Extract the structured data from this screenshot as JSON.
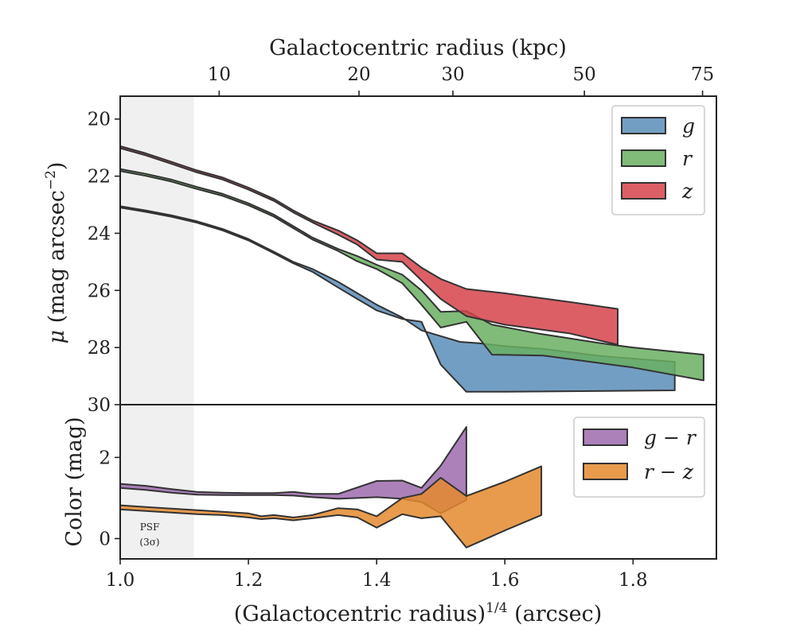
{
  "colors": {
    "g": "#5b8db8",
    "r": "#6aaf61",
    "z": "#d6434b",
    "gr": "#9d6bae",
    "rz": "#e48a2e",
    "psf_band": "#f0f0f0",
    "edge": "#333333"
  },
  "top_axis": {
    "label": "Galactocentric radius (kpc)",
    "ticks": [
      {
        "label": "10",
        "x": 1.1544
      },
      {
        "label": "20",
        "x": 1.3725
      },
      {
        "label": "30",
        "x": 1.519
      },
      {
        "label": "50",
        "x": 1.7241
      },
      {
        "label": "75",
        "x": 1.9084
      }
    ]
  },
  "annotations": {
    "psf_line1": "PSF",
    "psf_line2": "(3σ)"
  },
  "chart_data": [
    {
      "type": "area",
      "panel": "surface-brightness",
      "ylabel": "μ (mag arcsec⁻²)",
      "xlim": [
        1.0,
        1.93
      ],
      "ylim": [
        30,
        19.2
      ],
      "yticks": [
        "20",
        "22",
        "24",
        "26",
        "28",
        "30"
      ],
      "psf_region": [
        1.0,
        1.115
      ],
      "legend": {
        "placement": "top-right",
        "entries": [
          "g",
          "r",
          "z"
        ]
      },
      "series": [
        {
          "name": "g",
          "upper": [
            [
              1.0,
              23.05
            ],
            [
              1.04,
              23.2
            ],
            [
              1.08,
              23.37
            ],
            [
              1.12,
              23.58
            ],
            [
              1.16,
              23.85
            ],
            [
              1.2,
              24.2
            ],
            [
              1.24,
              24.65
            ],
            [
              1.27,
              25.0
            ],
            [
              1.3,
              25.25
            ],
            [
              1.34,
              25.7
            ],
            [
              1.37,
              26.1
            ],
            [
              1.4,
              26.5
            ],
            [
              1.44,
              26.95
            ],
            [
              1.47,
              27.4
            ],
            [
              1.5,
              27.6
            ],
            [
              1.53,
              27.8
            ],
            [
              1.56,
              27.85
            ],
            [
              1.6,
              27.95
            ],
            [
              1.66,
              28.05
            ],
            [
              1.75,
              28.3
            ],
            [
              1.865,
              28.5
            ]
          ],
          "lower": [
            [
              1.0,
              23.1
            ],
            [
              1.04,
              23.25
            ],
            [
              1.08,
              23.42
            ],
            [
              1.12,
              23.63
            ],
            [
              1.16,
              23.9
            ],
            [
              1.2,
              24.25
            ],
            [
              1.24,
              24.7
            ],
            [
              1.27,
              25.05
            ],
            [
              1.3,
              25.35
            ],
            [
              1.34,
              25.9
            ],
            [
              1.37,
              26.3
            ],
            [
              1.4,
              26.7
            ],
            [
              1.44,
              27.0
            ],
            [
              1.47,
              27.1
            ],
            [
              1.5,
              28.6
            ],
            [
              1.54,
              29.55
            ],
            [
              1.6,
              29.55
            ],
            [
              1.7,
              29.53
            ],
            [
              1.865,
              29.5
            ]
          ]
        },
        {
          "name": "r",
          "upper": [
            [
              1.0,
              21.75
            ],
            [
              1.04,
              21.92
            ],
            [
              1.08,
              22.12
            ],
            [
              1.12,
              22.38
            ],
            [
              1.16,
              22.62
            ],
            [
              1.2,
              22.95
            ],
            [
              1.24,
              23.35
            ],
            [
              1.27,
              23.75
            ],
            [
              1.3,
              24.15
            ],
            [
              1.34,
              24.55
            ],
            [
              1.37,
              24.8
            ],
            [
              1.4,
              25.1
            ],
            [
              1.44,
              25.45
            ],
            [
              1.47,
              26.0
            ],
            [
              1.5,
              26.75
            ],
            [
              1.54,
              26.72
            ],
            [
              1.58,
              27.2
            ],
            [
              1.65,
              27.5
            ],
            [
              1.75,
              27.85
            ],
            [
              1.8,
              28.0
            ],
            [
              1.91,
              28.25
            ]
          ],
          "lower": [
            [
              1.0,
              21.82
            ],
            [
              1.04,
              21.99
            ],
            [
              1.08,
              22.19
            ],
            [
              1.12,
              22.45
            ],
            [
              1.16,
              22.69
            ],
            [
              1.2,
              23.02
            ],
            [
              1.24,
              23.42
            ],
            [
              1.27,
              23.82
            ],
            [
              1.3,
              24.22
            ],
            [
              1.34,
              24.62
            ],
            [
              1.37,
              24.98
            ],
            [
              1.4,
              25.25
            ],
            [
              1.44,
              25.75
            ],
            [
              1.47,
              26.5
            ],
            [
              1.5,
              27.3
            ],
            [
              1.54,
              27.1
            ],
            [
              1.58,
              28.25
            ],
            [
              1.66,
              28.28
            ],
            [
              1.75,
              28.55
            ],
            [
              1.8,
              28.7
            ],
            [
              1.91,
              29.15
            ]
          ]
        },
        {
          "name": "z",
          "upper": [
            [
              1.0,
              20.95
            ],
            [
              1.04,
              21.2
            ],
            [
              1.08,
              21.5
            ],
            [
              1.12,
              21.8
            ],
            [
              1.16,
              22.05
            ],
            [
              1.2,
              22.4
            ],
            [
              1.24,
              22.8
            ],
            [
              1.27,
              23.2
            ],
            [
              1.3,
              23.55
            ],
            [
              1.34,
              23.9
            ],
            [
              1.37,
              24.25
            ],
            [
              1.4,
              24.7
            ],
            [
              1.44,
              24.7
            ],
            [
              1.47,
              25.2
            ],
            [
              1.5,
              25.6
            ],
            [
              1.54,
              25.95
            ],
            [
              1.6,
              26.1
            ],
            [
              1.7,
              26.4
            ],
            [
              1.776,
              26.65
            ]
          ],
          "lower": [
            [
              1.0,
              21.02
            ],
            [
              1.04,
              21.27
            ],
            [
              1.08,
              21.57
            ],
            [
              1.12,
              21.87
            ],
            [
              1.16,
              22.12
            ],
            [
              1.2,
              22.47
            ],
            [
              1.24,
              22.87
            ],
            [
              1.27,
              23.27
            ],
            [
              1.3,
              23.62
            ],
            [
              1.34,
              24.05
            ],
            [
              1.37,
              24.4
            ],
            [
              1.4,
              24.92
            ],
            [
              1.44,
              25.0
            ],
            [
              1.47,
              25.65
            ],
            [
              1.5,
              26.3
            ],
            [
              1.54,
              26.9
            ],
            [
              1.6,
              27.2
            ],
            [
              1.7,
              27.5
            ],
            [
              1.776,
              27.9
            ]
          ]
        }
      ]
    },
    {
      "type": "area",
      "panel": "color",
      "xlabel": "(Galactocentric radius)¹ᐟ⁴ (arcsec)",
      "ylabel": "Color (mag)",
      "xlim": [
        1.0,
        1.93
      ],
      "ylim": [
        -0.5,
        3.3
      ],
      "xticks": [
        "1.0",
        "1.2",
        "1.4",
        "1.6",
        "1.8"
      ],
      "yticks": [
        "0",
        "2"
      ],
      "psf_region": [
        1.0,
        1.115
      ],
      "legend": {
        "placement": "top-right",
        "entries": [
          "g − r",
          "r − z"
        ]
      },
      "series": [
        {
          "name": "g − r",
          "upper": [
            [
              1.0,
              1.35
            ],
            [
              1.04,
              1.3
            ],
            [
              1.08,
              1.22
            ],
            [
              1.12,
              1.15
            ],
            [
              1.16,
              1.13
            ],
            [
              1.2,
              1.12
            ],
            [
              1.24,
              1.12
            ],
            [
              1.27,
              1.15
            ],
            [
              1.3,
              1.1
            ],
            [
              1.34,
              1.1
            ],
            [
              1.4,
              1.42
            ],
            [
              1.44,
              1.43
            ],
            [
              1.47,
              1.25
            ],
            [
              1.5,
              1.8
            ],
            [
              1.54,
              2.75
            ]
          ],
          "lower": [
            [
              1.0,
              1.25
            ],
            [
              1.04,
              1.2
            ],
            [
              1.08,
              1.13
            ],
            [
              1.12,
              1.08
            ],
            [
              1.16,
              1.07
            ],
            [
              1.2,
              1.07
            ],
            [
              1.24,
              1.07
            ],
            [
              1.27,
              1.06
            ],
            [
              1.3,
              1.02
            ],
            [
              1.34,
              0.98
            ],
            [
              1.4,
              1.02
            ],
            [
              1.44,
              0.98
            ],
            [
              1.47,
              0.9
            ],
            [
              1.5,
              0.62
            ],
            [
              1.54,
              0.95
            ]
          ]
        },
        {
          "name": "r − z",
          "upper": [
            [
              1.0,
              0.82
            ],
            [
              1.04,
              0.78
            ],
            [
              1.08,
              0.74
            ],
            [
              1.12,
              0.7
            ],
            [
              1.16,
              0.66
            ],
            [
              1.2,
              0.62
            ],
            [
              1.22,
              0.55
            ],
            [
              1.24,
              0.58
            ],
            [
              1.27,
              0.52
            ],
            [
              1.3,
              0.58
            ],
            [
              1.34,
              0.75
            ],
            [
              1.37,
              0.72
            ],
            [
              1.4,
              0.55
            ],
            [
              1.44,
              1.0
            ],
            [
              1.47,
              1.1
            ],
            [
              1.5,
              1.5
            ],
            [
              1.54,
              1.05
            ],
            [
              1.6,
              1.4
            ],
            [
              1.657,
              1.78
            ]
          ],
          "lower": [
            [
              1.0,
              0.72
            ],
            [
              1.04,
              0.68
            ],
            [
              1.08,
              0.64
            ],
            [
              1.12,
              0.6
            ],
            [
              1.16,
              0.58
            ],
            [
              1.2,
              0.52
            ],
            [
              1.22,
              0.48
            ],
            [
              1.24,
              0.5
            ],
            [
              1.27,
              0.45
            ],
            [
              1.3,
              0.5
            ],
            [
              1.34,
              0.58
            ],
            [
              1.37,
              0.52
            ],
            [
              1.4,
              0.27
            ],
            [
              1.44,
              0.6
            ],
            [
              1.47,
              0.5
            ],
            [
              1.5,
              0.55
            ],
            [
              1.54,
              -0.22
            ],
            [
              1.6,
              0.2
            ],
            [
              1.657,
              0.58
            ]
          ]
        }
      ]
    }
  ]
}
